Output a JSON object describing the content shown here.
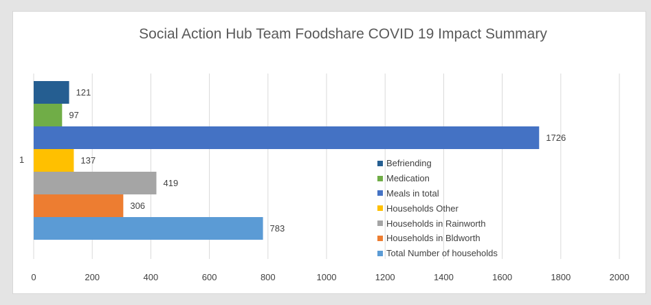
{
  "chart_data": {
    "type": "bar",
    "orientation": "horizontal",
    "title": "Social Action Hub Team Foodshare COVID 19 Impact Summary",
    "category": "1",
    "xlim": [
      0,
      2000
    ],
    "xticks": [
      0,
      200,
      400,
      600,
      800,
      1000,
      1200,
      1400,
      1600,
      1800,
      2000
    ],
    "grid": true,
    "legend_position": "right-middle",
    "series": [
      {
        "name": "Befriending",
        "value": 121,
        "color": "#255e91"
      },
      {
        "name": "Medication",
        "value": 97,
        "color": "#70ad47"
      },
      {
        "name": "Meals in total",
        "value": 1726,
        "color": "#4472c4"
      },
      {
        "name": "Households Other",
        "value": 137,
        "color": "#ffc000"
      },
      {
        "name": "Households in Rainworth",
        "value": 419,
        "color": "#a5a5a5"
      },
      {
        "name": "Households in Bldworth",
        "value": 306,
        "color": "#ed7d31"
      },
      {
        "name": "Total Number of households",
        "value": 783,
        "color": "#5b9bd5"
      }
    ]
  }
}
